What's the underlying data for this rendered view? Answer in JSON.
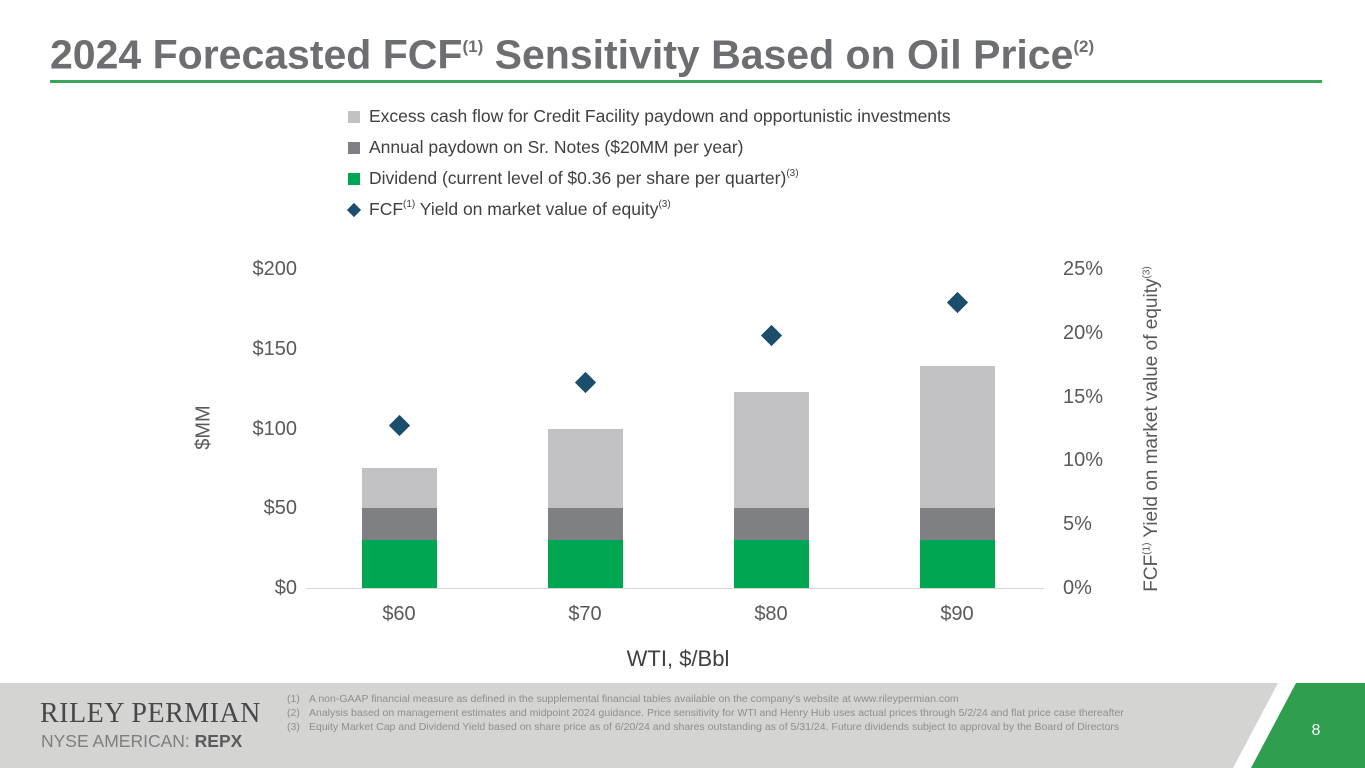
{
  "header": {
    "p1": "2024 Forecasted FCF",
    "s1": "(1)",
    "p2": " Sensitivity Based on Oil Price",
    "s2": "(2)"
  },
  "legend": {
    "items": [
      {
        "marker": "square",
        "color": "#c2c2c4",
        "parts": [
          [
            "t",
            "Excess cash flow for Credit Facility paydown and opportunistic investments"
          ]
        ]
      },
      {
        "marker": "square",
        "color": "#7f8083",
        "parts": [
          [
            "t",
            "Annual paydown on Sr. Notes ($20MM per year)"
          ]
        ]
      },
      {
        "marker": "square",
        "color": "#00a651",
        "parts": [
          [
            "t",
            "Dividend (current level of $0.36 per share per quarter)"
          ],
          [
            "s",
            "(3)"
          ]
        ]
      },
      {
        "marker": "diamond",
        "color": "#1a4e6b",
        "parts": [
          [
            "t",
            "FCF"
          ],
          [
            "s",
            "(1)"
          ],
          [
            "t",
            " Yield on market value of equity"
          ],
          [
            "s",
            "(3)"
          ]
        ]
      }
    ]
  },
  "chart_data": {
    "type": "bar",
    "stacked": true,
    "categories": [
      "$60",
      "$70",
      "$80",
      "$90"
    ],
    "series": [
      {
        "name": "Dividend (current level of $0.36 per share per quarter)",
        "values": [
          30,
          30,
          30,
          30
        ],
        "color": "#00a651"
      },
      {
        "name": "Annual paydown on Sr. Notes ($20MM per year)",
        "values": [
          20,
          20,
          20,
          20
        ],
        "color": "#7f8083"
      },
      {
        "name": "Excess cash flow for Credit Facility paydown and opportunistic investments",
        "values": [
          25,
          50,
          73,
          89
        ],
        "color": "#c2c2c4"
      }
    ],
    "scatter_series": {
      "name": "FCF Yield on market value of equity",
      "values_pct": [
        12.7,
        16.1,
        19.8,
        22.4
      ],
      "color": "#1a4e6b",
      "axis": "right"
    },
    "title": "2024 Forecasted FCF Sensitivity Based on Oil Price",
    "xlabel": "WTI, $/Bbl",
    "ylabel_left": "$MM",
    "ylabel_right": "FCF Yield on market value of equity",
    "ylim_left": [
      0,
      200
    ],
    "ylim_right": [
      0,
      25
    ],
    "yticks_left": [
      "$0",
      "$50",
      "$100",
      "$150",
      "$200"
    ],
    "yticks_right": [
      "0%",
      "5%",
      "10%",
      "15%",
      "20%",
      "25%"
    ],
    "grid": false,
    "legend_position": "top"
  },
  "axes": {
    "left_label": "$MM",
    "right_label": {
      "p1": "FCF",
      "s1": "(1)",
      "p2": " Yield on market value of equity",
      "s2": "(3)"
    },
    "x_title": "WTI, $/Bbl"
  },
  "footer": {
    "logo_line1": "RILEY PERMIAN",
    "logo_line2_prefix": "NYSE AMERICAN: ",
    "logo_ticker": "REPX",
    "footnotes": [
      {
        "num": "(1)",
        "text": "A non-GAAP financial measure as defined in the supplemental financial tables available on the company's website at www.rileypermian.com"
      },
      {
        "num": "(2)",
        "text": "Analysis based on management estimates and midpoint 2024 guidance. Price sensitivity for WTI and Henry Hub uses actual prices through 5/2/24 and flat price case thereafter"
      },
      {
        "num": "(3)",
        "text": "Equity Market Cap and Dividend Yield based on share price as of 6/20/24 and shares outstanding as of 5/31/24. Future dividends subject to approval by the Board of Directors"
      }
    ],
    "page_number": "8"
  },
  "colors": {
    "title_text": "#6d6e71",
    "title_underline": "#3aa65a",
    "bar_light_gray": "#c2c2c4",
    "bar_dark_gray": "#7f8083",
    "bar_green": "#00a651",
    "diamond_navy": "#1a4e6b",
    "footer_band": "#d4d4d2",
    "corner_green": "#2f9e4e",
    "corner_stripe": "#ffffff",
    "axis_line": "#d6d6d6"
  }
}
